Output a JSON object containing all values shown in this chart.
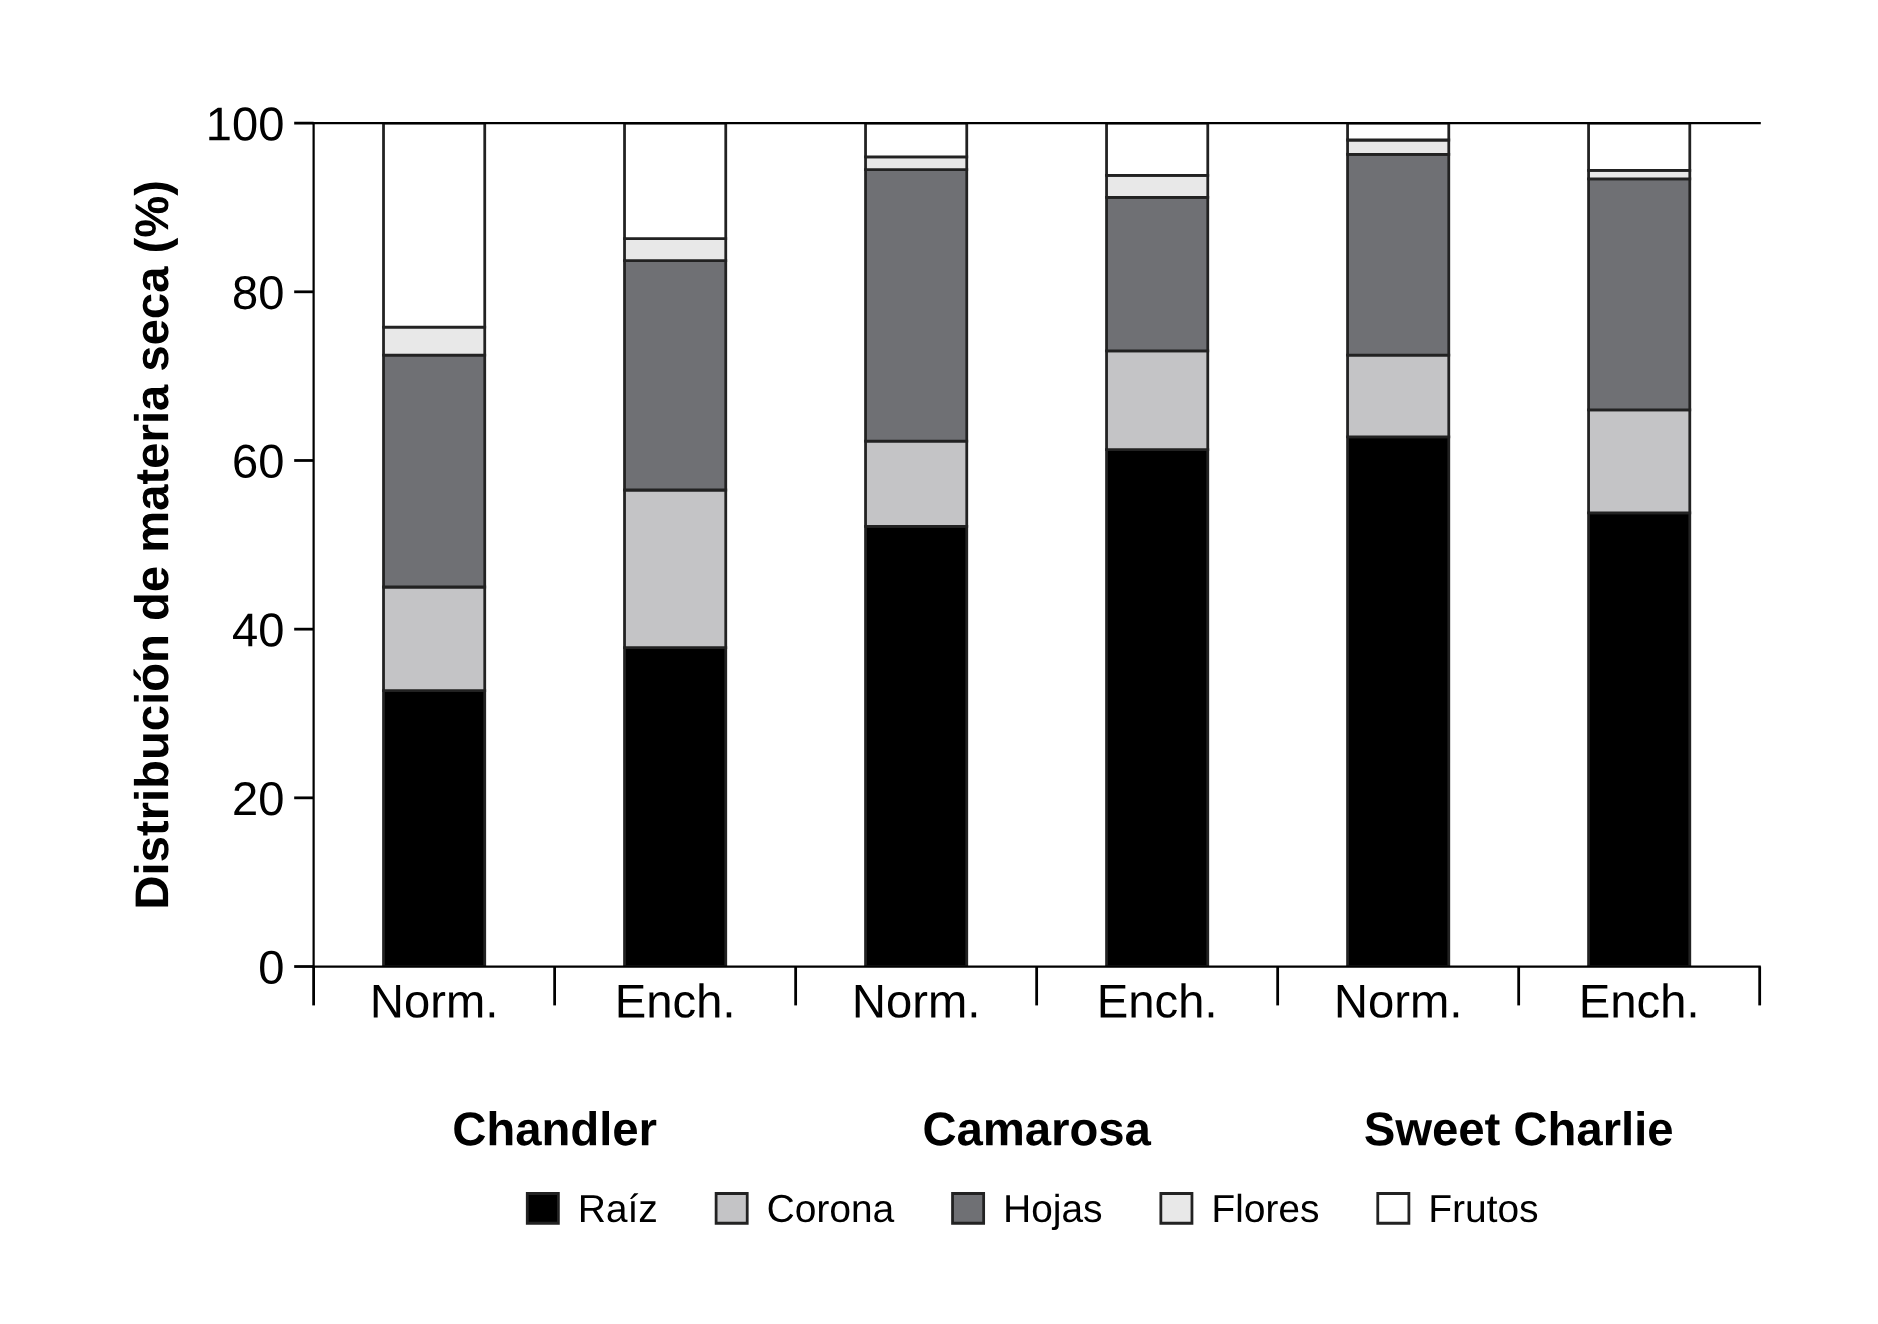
{
  "chart_data": {
    "type": "bar",
    "stacked": true,
    "ylabel": "Distribución de materia seca (%)",
    "categories": [
      "Norm.",
      "Ench.",
      "Norm.",
      "Ench.",
      "Norm.",
      "Ench."
    ],
    "annotations": [
      "Chandler",
      "Camarosa",
      "Sweet Charlie"
    ],
    "series": [
      {
        "name": "Raíz",
        "color": "#000000",
        "values": [
          32.7,
          37.8,
          52.2,
          61.3,
          62.8,
          53.8
        ]
      },
      {
        "name": "Corona",
        "color": "#c4c4c6",
        "values": [
          12.3,
          18.7,
          10.1,
          11.7,
          9.7,
          12.2
        ]
      },
      {
        "name": "Hojas",
        "color": "#6f7074",
        "values": [
          27.5,
          27.2,
          32.2,
          18.2,
          23.8,
          27.4
        ]
      },
      {
        "name": "Flores",
        "color": "#e8e8e8",
        "values": [
          3.3,
          2.6,
          1.5,
          2.6,
          1.7,
          1.0
        ]
      },
      {
        "name": "Frutos",
        "color": "#ffffff",
        "values": [
          24.2,
          13.7,
          4.0,
          6.2,
          2.0,
          5.6
        ]
      }
    ],
    "ylim": [
      0,
      100
    ],
    "yticks": [
      0,
      20,
      40,
      60,
      80,
      100
    ],
    "legend": "bottom",
    "grid": false
  }
}
